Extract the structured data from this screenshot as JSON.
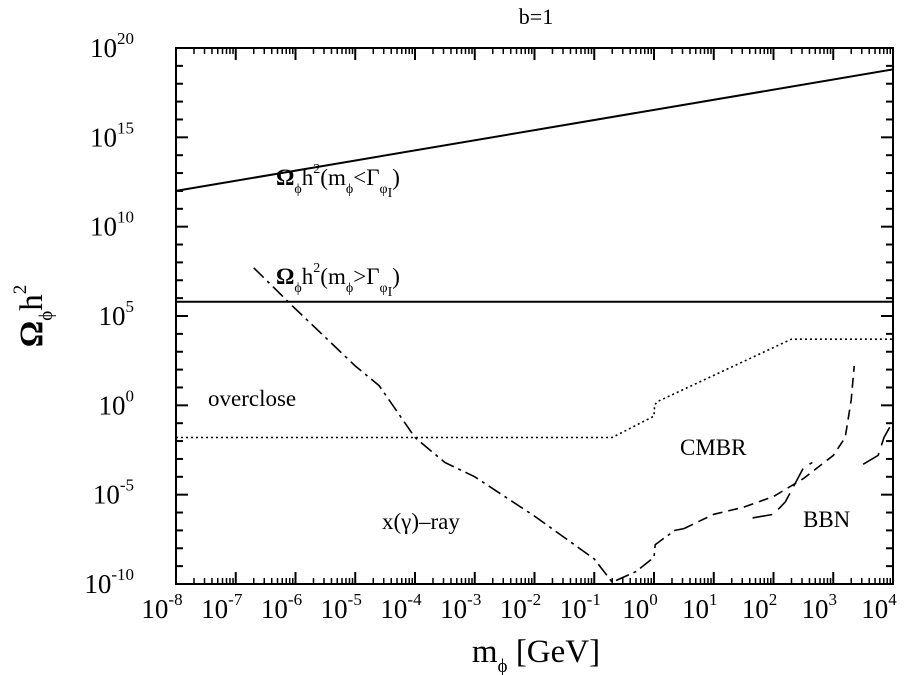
{
  "chart_data": {
    "type": "line",
    "title": "b=1",
    "xlabel": {
      "main": "m",
      "sub": "ϕ",
      "tail": " [GeV]"
    },
    "ylabel": {
      "main": "Ω",
      "sub": "ϕ",
      "tail": "h",
      "sup": "2"
    },
    "x_log10_range": [
      -8,
      4
    ],
    "y_log10_range": [
      -10,
      20
    ],
    "x_ticks": [
      {
        "base": "10",
        "exp": "-8"
      },
      {
        "base": "10",
        "exp": "-7"
      },
      {
        "base": "10",
        "exp": "-6"
      },
      {
        "base": "10",
        "exp": "-5"
      },
      {
        "base": "10",
        "exp": "-4"
      },
      {
        "base": "10",
        "exp": "-3"
      },
      {
        "base": "10",
        "exp": "-2"
      },
      {
        "base": "10",
        "exp": "-1"
      },
      {
        "base": "10",
        "exp": "0"
      },
      {
        "base": "10",
        "exp": "1"
      },
      {
        "base": "10",
        "exp": "2"
      },
      {
        "base": "10",
        "exp": "3"
      },
      {
        "base": "10",
        "exp": "4"
      }
    ],
    "y_ticks": [
      {
        "base": "10",
        "exp": "-10"
      },
      {
        "base": "10",
        "exp": "-5"
      },
      {
        "base": "10",
        "exp": "0"
      },
      {
        "base": "10",
        "exp": "5"
      },
      {
        "base": "10",
        "exp": "10"
      },
      {
        "base": "10",
        "exp": "15"
      },
      {
        "base": "10",
        "exp": "20"
      }
    ],
    "series": [
      {
        "id": "light",
        "style": "solid",
        "log10_points": [
          [
            -8,
            12.0
          ],
          [
            4,
            18.8
          ]
        ]
      },
      {
        "id": "heavy",
        "style": "solid",
        "log10_points": [
          [
            -8,
            5.8
          ],
          [
            4,
            5.8
          ]
        ]
      },
      {
        "id": "overclose",
        "style": "dotted",
        "log10_points": [
          [
            -8,
            -1.8
          ],
          [
            -0.7,
            -1.8
          ],
          [
            0,
            -0.6
          ],
          [
            0.01,
            0.0
          ],
          [
            0.05,
            0.2
          ],
          [
            2.3,
            3.7
          ],
          [
            4,
            3.7
          ]
        ]
      },
      {
        "id": "xray",
        "style": "dash-dot",
        "log10_points": [
          [
            -6.7,
            7.7
          ],
          [
            -6.0,
            5.4
          ],
          [
            -5.0,
            2.2
          ],
          [
            -4.6,
            1.1
          ],
          [
            -4.0,
            -1.8
          ],
          [
            -3.5,
            -3.2
          ],
          [
            -3.0,
            -4.0
          ],
          [
            -2.0,
            -6.2
          ],
          [
            -1.0,
            -8.6
          ],
          [
            -0.7,
            -9.9
          ],
          [
            -0.3,
            -9.3
          ],
          [
            0.0,
            -8.5
          ],
          [
            0.02,
            -7.8
          ],
          [
            0.1,
            -7.6
          ],
          [
            0.35,
            -7.0
          ],
          [
            0.5,
            -6.9
          ]
        ]
      },
      {
        "id": "cmbr",
        "style": "dashed",
        "log10_points": [
          [
            0.5,
            -6.9
          ],
          [
            1.0,
            -6.1
          ],
          [
            1.5,
            -5.7
          ],
          [
            2.0,
            -5.1
          ],
          [
            2.5,
            -4.1
          ],
          [
            3.0,
            -2.8
          ],
          [
            3.2,
            -1.8
          ],
          [
            3.3,
            0.3
          ],
          [
            3.35,
            2.2
          ]
        ]
      },
      {
        "id": "bbn",
        "style": "long-dash",
        "log10_points": [
          [
            [
              1.65,
              -6.3
            ],
            [
              2.0,
              -6.1
            ],
            [
              2.2,
              -5.4
            ],
            [
              2.5,
              -3.5
            ],
            [
              2.65,
              -3.2
            ]
          ],
          [
            [
              3.5,
              -3.3
            ],
            [
              3.75,
              -2.8
            ],
            [
              3.85,
              -1.8
            ],
            [
              3.95,
              -1.2
            ]
          ]
        ]
      }
    ],
    "annotations": {
      "light_label": {
        "main": "Ω",
        "sub1": "ϕ",
        "mid": "h",
        "sup": "2",
        "open": "(m",
        "sub2": "ϕ",
        "rel": "<Γ",
        "sub3": "φ",
        "sub3b": "I",
        "close": ")"
      },
      "heavy_label": {
        "main": "Ω",
        "sub1": "ϕ",
        "mid": "h",
        "sup": "2",
        "open": "(m",
        "sub2": "ϕ",
        "rel": ">Γ",
        "sub3": "φ",
        "sub3b": "I",
        "close": ")"
      },
      "overclose": "overclose",
      "cmbr": "CMBR",
      "xray": "x(γ)–ray",
      "bbn": "BBN"
    }
  }
}
